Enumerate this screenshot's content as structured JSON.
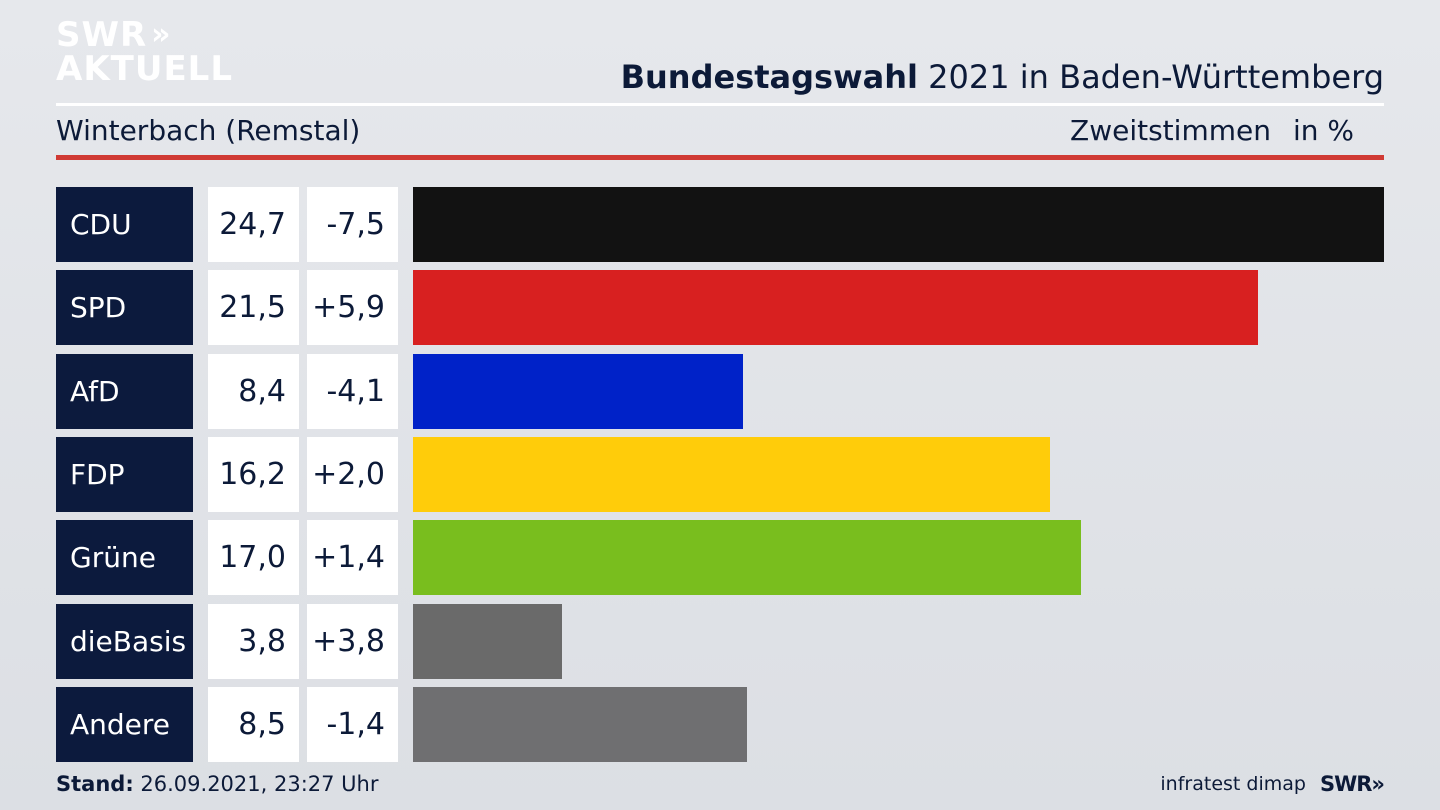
{
  "logo": {
    "line1": "SWR",
    "chevrons": "»",
    "line2": "AKTUELL"
  },
  "header": {
    "title_bold": "Bundestagswahl",
    "title_rest": " 2021 in Baden-Württemberg",
    "location": "Winterbach (Remstal)",
    "metric": "Zweitstimmen",
    "unit": "in %"
  },
  "chart_data": {
    "type": "bar",
    "orientation": "horizontal",
    "categories": [
      "CDU",
      "SPD",
      "AfD",
      "FDP",
      "Grüne",
      "dieBasis",
      "Andere"
    ],
    "values": [
      24.7,
      21.5,
      8.4,
      16.2,
      17.0,
      3.8,
      8.5
    ],
    "value_labels": [
      "24,7",
      "21,5",
      "8,4",
      "16,2",
      "17,0",
      "3,8",
      "8,5"
    ],
    "changes": [
      "-7,5",
      "+5,9",
      "-4,1",
      "+2,0",
      "+1,4",
      "+3,8",
      "-1,4"
    ],
    "colors": [
      "#121212",
      "#d82020",
      "#0022c8",
      "#ffcc0a",
      "#79be1e",
      "#6a6a6a",
      "#6f6f71"
    ],
    "xlim": [
      0,
      24.7
    ],
    "grid": false,
    "legend": "none"
  },
  "footer": {
    "stand_label": "Stand:",
    "stand_value": " 26.09.2021, 23:27 Uhr",
    "source": "infratest dimap",
    "brand": "SWR",
    "brand_chevrons": "»"
  }
}
